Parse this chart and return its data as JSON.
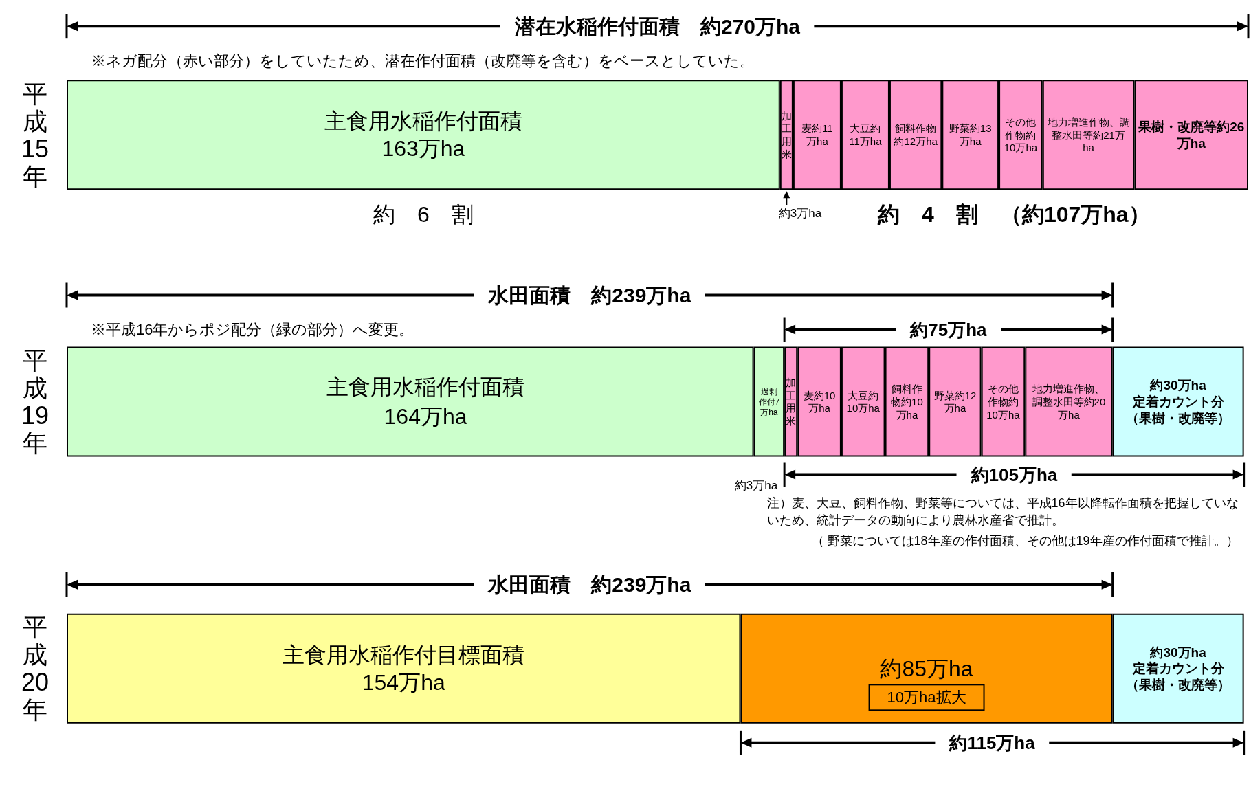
{
  "chart_data": {
    "type": "bar",
    "orientation": "horizontal",
    "stacked": true,
    "tick_labels": "y",
    "categories": [
      "平成15年",
      "平成19年",
      "平成20年"
    ],
    "series": [
      {
        "values": [
          163,
          157,
          154
        ],
        "colors": [
          "#ccffcc",
          "#ccffcc",
          "#ffff99"
        ],
        "value_labels": [
          "主食用水稲作付面積\n163万ha",
          null,
          "主食用水稲作付目標面積\n154万ha"
        ]
      },
      {
        "values": [
          null,
          7,
          null
        ],
        "colors": [
          null,
          "#ccffcc",
          null
        ],
        "value_labels": [
          null,
          "過剰作付7万ha",
          null
        ]
      },
      {
        "values": [
          3,
          3,
          null
        ],
        "colors": [
          "#ff99cc",
          "#ff99cc",
          null
        ],
        "value_labels": [
          "加工用米",
          "加工用米",
          null
        ]
      },
      {
        "values": [
          11,
          10,
          null
        ],
        "colors": [
          "#ff99cc",
          "#ff99cc",
          null
        ],
        "value_labels": [
          "麦約11万ha",
          "麦約10万ha",
          null
        ]
      },
      {
        "values": [
          11,
          10,
          null
        ],
        "colors": [
          "#ff99cc",
          "#ff99cc",
          null
        ],
        "value_labels": [
          "大豆約11万ha",
          "大豆約10万ha",
          null
        ]
      },
      {
        "values": [
          12,
          10,
          null
        ],
        "colors": [
          "#ff99cc",
          "#ff99cc",
          null
        ],
        "value_labels": [
          "飼料作物約12万ha",
          "飼料作物約10万ha",
          null
        ]
      },
      {
        "values": [
          13,
          12,
          null
        ],
        "colors": [
          "#ff99cc",
          "#ff99cc",
          null
        ],
        "value_labels": [
          "野菜約13万ha",
          "野菜約12万ha",
          null
        ]
      },
      {
        "values": [
          10,
          10,
          null
        ],
        "colors": [
          "#ff99cc",
          "#ff99cc",
          null
        ],
        "value_labels": [
          "その他作物約10万ha",
          "その他作物約10万ha",
          null
        ]
      },
      {
        "values": [
          21,
          20,
          null
        ],
        "colors": [
          "#ff99cc",
          "#ff99cc",
          null
        ],
        "value_labels": [
          "地力増進作物、調整水田等約21万ha",
          "地力増進作物、調整水田等約20万ha",
          null
        ]
      },
      {
        "values": [
          null,
          null,
          85
        ],
        "colors": [
          null,
          null,
          "#ff9900"
        ],
        "value_labels": [
          null,
          null,
          "約85万ha"
        ]
      },
      {
        "values": [
          26,
          30,
          30
        ],
        "colors": [
          "#ff99cc",
          "#ccffff",
          "#ccffff"
        ],
        "value_labels": [
          "果樹・改廃等約26万ha",
          "約30万ha\n定着カウント分（果樹・改廃等）",
          "約30万ha\n定着カウント分（果樹・改廃等）"
        ]
      }
    ],
    "annotations": [
      "潜在水稲作付面積　約270万ha",
      "※ネガ配分（赤い部分）をしていたため、潜在作付面積（改廃等を含む）をベースとしていた。",
      "約　6　割",
      "約　4　割　（約107万ha）",
      "約3万ha",
      "水田面積　約239万ha",
      "※平成16年からポジ配分（緑の部分）へ変更。",
      "約75万ha",
      "主食用水稲作付面積\n164万ha",
      "約3万ha",
      "約105万ha",
      "注）麦、大豆、飼料作物、野菜等については、平成16年以降転作面積を把握していないため、統計データの動向により農林水産省で推計。",
      "（ 野菜については18年産の作付面積、その他は19年産の作付面積で推計。）",
      "水田面積　約239万ha",
      "10万ha拡大",
      "約115万ha"
    ]
  }
}
